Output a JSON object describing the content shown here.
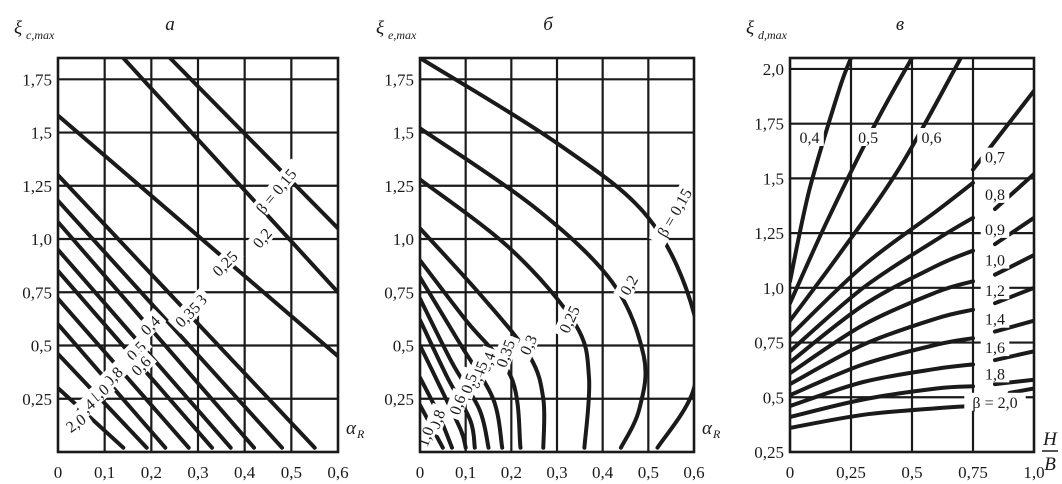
{
  "chart_data": [
    {
      "panel": "a",
      "type": "line",
      "ylabel": {
        "main": "ξ",
        "sub": "c,max"
      },
      "xlabel": "α_R",
      "xlabel_main": "α",
      "xlabel_sub": "R",
      "xticks": [
        "0",
        "0,1",
        "0,2",
        "0,3",
        "0,4",
        "0,5",
        "0,6"
      ],
      "yticks": [
        "0,25",
        "0,5",
        "0,75",
        "1,0",
        "1,25",
        "1,5",
        "1,75"
      ],
      "xlim": [
        0,
        0.6
      ],
      "ylim": [
        0,
        1.85
      ],
      "grid": true,
      "series": [
        {
          "label": "β = 0,15",
          "points": [
            [
              0.24,
              1.85
            ],
            [
              0.6,
              1.05
            ]
          ],
          "label_at": [
            0.47,
            1.22
          ],
          "label_angle": -50
        },
        {
          "label": "0,2",
          "points": [
            [
              0.14,
              1.85
            ],
            [
              0.6,
              0.75
            ]
          ],
          "label_at": [
            0.44,
            1.0
          ],
          "label_angle": -50
        },
        {
          "label": "0,25",
          "points": [
            [
              0.0,
              1.58
            ],
            [
              0.6,
              0.45
            ]
          ],
          "label_at": [
            0.36,
            0.88
          ],
          "label_angle": -45
        },
        {
          "label": "0,3",
          "points": [
            [
              0.0,
              1.3
            ],
            [
              0.55,
              0.02
            ]
          ],
          "label_at": [
            0.3,
            0.69
          ],
          "label_angle": -45
        },
        {
          "label": "0,35",
          "points": [
            [
              0.0,
              1.18
            ],
            [
              0.48,
              0.02
            ]
          ],
          "label_at": [
            0.28,
            0.64
          ],
          "label_angle": -45
        },
        {
          "label": "0,4",
          "points": [
            [
              0.0,
              1.08
            ],
            [
              0.42,
              0.02
            ]
          ],
          "label_at": [
            0.2,
            0.59
          ],
          "label_angle": -45
        },
        {
          "label": "0,5",
          "points": [
            [
              0.0,
              0.95
            ],
            [
              0.37,
              0.02
            ]
          ],
          "label_at": [
            0.17,
            0.47
          ],
          "label_angle": -45
        },
        {
          "label": "0,6",
          "points": [
            [
              0.0,
              0.85
            ],
            [
              0.33,
              0.02
            ]
          ],
          "label_at": [
            0.18,
            0.4
          ],
          "label_angle": -45
        },
        {
          "label": "0,8",
          "points": [
            [
              0.0,
              0.72
            ],
            [
              0.28,
              0.02
            ]
          ],
          "label_at": [
            0.12,
            0.35
          ],
          "label_angle": -45
        },
        {
          "label": "1,0",
          "points": [
            [
              0.0,
              0.6
            ],
            [
              0.23,
              0.02
            ]
          ],
          "label_at": [
            0.09,
            0.27
          ],
          "label_angle": -40
        },
        {
          "label": "1,4",
          "points": [
            [
              0.0,
              0.46
            ],
            [
              0.19,
              0.02
            ]
          ],
          "label_at": [
            0.06,
            0.2
          ],
          "label_angle": -40
        },
        {
          "label": "2,0",
          "points": [
            [
              0.0,
              0.3
            ],
            [
              0.14,
              0.02
            ]
          ],
          "label_at": [
            0.04,
            0.13
          ],
          "label_angle": -35
        }
      ]
    },
    {
      "panel": "б",
      "type": "line",
      "ylabel": {
        "main": "ξ",
        "sub": "e,max"
      },
      "xlabel": "α_R",
      "xlabel_main": "α",
      "xlabel_sub": "R",
      "xticks": [
        "0",
        "0,1",
        "0,2",
        "0,3",
        "0,4",
        "0,5",
        "0,6"
      ],
      "yticks": [
        "0,25",
        "0,5",
        "0,75",
        "1,0",
        "1,25",
        "1,5",
        "1,75"
      ],
      "xlim": [
        0,
        0.6
      ],
      "ylim": [
        0,
        1.85
      ],
      "grid": true,
      "series": [
        {
          "label": "β = 0,15",
          "points": [
            [
              0.0,
              1.85
            ],
            [
              0.3,
              1.45
            ],
            [
              0.5,
              1.1
            ],
            [
              0.6,
              0.65
            ],
            [
              0.6,
              0.3
            ],
            [
              0.52,
              0.02
            ]
          ],
          "label_at": [
            0.56,
            1.12
          ],
          "label_angle": -60
        },
        {
          "label": "0,2",
          "points": [
            [
              0.0,
              1.52
            ],
            [
              0.25,
              1.15
            ],
            [
              0.42,
              0.8
            ],
            [
              0.49,
              0.45
            ],
            [
              0.48,
              0.2
            ],
            [
              0.44,
              0.02
            ]
          ],
          "label_at": [
            0.46,
            0.78
          ],
          "label_angle": -60
        },
        {
          "label": "0,25",
          "points": [
            [
              0.0,
              1.28
            ],
            [
              0.2,
              0.95
            ],
            [
              0.34,
              0.6
            ],
            [
              0.37,
              0.35
            ],
            [
              0.36,
              0.02
            ]
          ],
          "label_at": [
            0.33,
            0.62
          ],
          "label_angle": -65
        },
        {
          "label": "0,3",
          "points": [
            [
              0.0,
              1.05
            ],
            [
              0.14,
              0.72
            ],
            [
              0.24,
              0.45
            ],
            [
              0.27,
              0.25
            ],
            [
              0.27,
              0.02
            ]
          ],
          "label_at": [
            0.24,
            0.5
          ],
          "label_angle": -65
        },
        {
          "label": "0,35",
          "points": [
            [
              0.0,
              0.9
            ],
            [
              0.1,
              0.62
            ],
            [
              0.2,
              0.35
            ],
            [
              0.22,
              0.02
            ]
          ],
          "label_at": [
            0.19,
            0.46
          ],
          "label_angle": -70
        },
        {
          "label": "0,4",
          "points": [
            [
              0.0,
              0.82
            ],
            [
              0.09,
              0.5
            ],
            [
              0.16,
              0.25
            ],
            [
              0.18,
              0.02
            ]
          ],
          "label_at": [
            0.15,
            0.42
          ],
          "label_angle": -70
        },
        {
          "label": "0,45",
          "points": [
            [
              0.0,
              0.72
            ],
            [
              0.07,
              0.42
            ],
            [
              0.13,
              0.2
            ],
            [
              0.15,
              0.02
            ]
          ],
          "label_at": [
            0.13,
            0.36
          ],
          "label_angle": -70
        },
        {
          "label": "0,5",
          "points": [
            [
              0.0,
              0.62
            ],
            [
              0.06,
              0.35
            ],
            [
              0.11,
              0.15
            ],
            [
              0.12,
              0.02
            ]
          ],
          "label_at": [
            0.11,
            0.32
          ],
          "label_angle": -70
        },
        {
          "label": "0,6",
          "points": [
            [
              0.0,
              0.5
            ],
            [
              0.05,
              0.28
            ],
            [
              0.09,
              0.1
            ],
            [
              0.1,
              0.02
            ]
          ],
          "label_at": [
            0.085,
            0.22
          ],
          "label_angle": -70
        },
        {
          "label": "0,8",
          "points": [
            [
              0.0,
              0.35
            ],
            [
              0.04,
              0.18
            ],
            [
              0.07,
              0.02
            ]
          ],
          "label_at": [
            0.04,
            0.15
          ],
          "label_angle": -70
        },
        {
          "label": "1,0",
          "points": [
            [
              0.0,
              0.22
            ],
            [
              0.03,
              0.1
            ],
            [
              0.05,
              0.02
            ]
          ],
          "label_at": [
            0.015,
            0.07
          ],
          "label_angle": -70
        }
      ]
    },
    {
      "panel": "в",
      "type": "line",
      "ylabel": {
        "main": "ξ",
        "sub": "d,max"
      },
      "xlabel": "H/B",
      "xlabel_num": "H",
      "xlabel_den": "B",
      "xticks": [
        "0",
        "0,25",
        "0,5",
        "0,75",
        "1,0"
      ],
      "yticks": [
        "0,25",
        "0,5",
        "0,75",
        "1,0",
        "1,25",
        "1,5",
        "1,75",
        "2,0"
      ],
      "xlim": [
        0,
        1.0
      ],
      "ylim": [
        0.25,
        2.05
      ],
      "grid": true,
      "series": [
        {
          "label": "0,4",
          "points": [
            [
              0.0,
              1.03
            ],
            [
              0.08,
              1.45
            ],
            [
              0.2,
              1.9
            ],
            [
              0.25,
              2.05
            ]
          ],
          "label_at": [
            0.08,
            1.68
          ],
          "label_angle": 0
        },
        {
          "label": "0,5",
          "points": [
            [
              0.0,
              0.93
            ],
            [
              0.15,
              1.3
            ],
            [
              0.35,
              1.75
            ],
            [
              0.5,
              2.05
            ]
          ],
          "label_at": [
            0.32,
            1.68
          ],
          "label_angle": 0
        },
        {
          "label": "0,6",
          "points": [
            [
              0.0,
              0.85
            ],
            [
              0.2,
              1.15
            ],
            [
              0.45,
              1.55
            ],
            [
              0.7,
              2.05
            ]
          ],
          "label_at": [
            0.58,
            1.68
          ],
          "label_angle": 0
        },
        {
          "label": "0,7",
          "points": [
            [
              0.0,
              0.78
            ],
            [
              0.3,
              1.1
            ],
            [
              0.6,
              1.35
            ],
            [
              0.75,
              1.48
            ]
          ],
          "label_at": [
            0.84,
            1.59
          ],
          "label_angle": 0
        },
        {
          "label": "0,8",
          "points": [
            [
              0.0,
              0.71
            ],
            [
              0.3,
              1.0
            ],
            [
              0.6,
              1.22
            ],
            [
              0.75,
              1.32
            ]
          ],
          "label_at": [
            0.84,
            1.42
          ],
          "label_angle": 0
        },
        {
          "label": "0,9",
          "points": [
            [
              0.0,
              0.66
            ],
            [
              0.3,
              0.92
            ],
            [
              0.6,
              1.1
            ],
            [
              0.75,
              1.17
            ]
          ],
          "label_at": [
            0.84,
            1.26
          ],
          "label_angle": 0
        },
        {
          "label": "1,0",
          "points": [
            [
              0.0,
              0.61
            ],
            [
              0.3,
              0.83
            ],
            [
              0.6,
              0.98
            ],
            [
              0.75,
              1.03
            ]
          ],
          "label_at": [
            0.84,
            1.12
          ],
          "label_angle": 0
        },
        {
          "label": "1,2",
          "points": [
            [
              0.0,
              0.56
            ],
            [
              0.3,
              0.74
            ],
            [
              0.6,
              0.86
            ],
            [
              0.75,
              0.9
            ]
          ],
          "label_at": [
            0.84,
            0.98
          ],
          "label_angle": 0
        },
        {
          "label": "1,4",
          "points": [
            [
              0.0,
              0.51
            ],
            [
              0.3,
              0.65
            ],
            [
              0.6,
              0.74
            ],
            [
              0.75,
              0.77
            ]
          ],
          "label_at": [
            0.84,
            0.85
          ],
          "label_angle": 0
        },
        {
          "label": "1,6",
          "points": [
            [
              0.0,
              0.46
            ],
            [
              0.3,
              0.57
            ],
            [
              0.6,
              0.63
            ],
            [
              0.75,
              0.65
            ]
          ],
          "label_at": [
            0.84,
            0.72
          ],
          "label_angle": 0
        },
        {
          "label": "1,8",
          "points": [
            [
              0.0,
              0.41
            ],
            [
              0.3,
              0.49
            ],
            [
              0.6,
              0.54
            ],
            [
              0.75,
              0.55
            ]
          ],
          "label_at": [
            0.84,
            0.6
          ],
          "label_angle": 0
        },
        {
          "label": "β = 2,0",
          "points": [
            [
              0.0,
              0.36
            ],
            [
              0.3,
              0.42
            ],
            [
              0.6,
              0.45
            ],
            [
              0.75,
              0.46
            ]
          ],
          "label_at": [
            0.84,
            0.47
          ],
          "label_angle": 0
        },
        {
          "label": "",
          "points": [
            [
              0.75,
              1.54
            ],
            [
              1.0,
              1.9
            ]
          ]
        },
        {
          "label": "",
          "points": [
            [
              0.84,
              1.36
            ],
            [
              1.0,
              1.52
            ]
          ]
        },
        {
          "label": "",
          "points": [
            [
              0.84,
              1.2
            ],
            [
              1.0,
              1.32
            ]
          ]
        },
        {
          "label": "",
          "points": [
            [
              0.84,
              1.06
            ],
            [
              1.0,
              1.15
            ]
          ]
        },
        {
          "label": "",
          "points": [
            [
              0.84,
              0.93
            ],
            [
              1.0,
              1.0
            ]
          ]
        },
        {
          "label": "",
          "points": [
            [
              0.84,
              0.8
            ],
            [
              1.0,
              0.85
            ]
          ]
        },
        {
          "label": "",
          "points": [
            [
              0.84,
              0.67
            ],
            [
              1.0,
              0.71
            ]
          ]
        },
        {
          "label": "",
          "points": [
            [
              0.84,
              0.56
            ],
            [
              1.0,
              0.58
            ]
          ]
        },
        {
          "label": "",
          "points": [
            [
              0.9,
              0.52
            ],
            [
              1.0,
              0.54
            ]
          ]
        }
      ]
    }
  ]
}
